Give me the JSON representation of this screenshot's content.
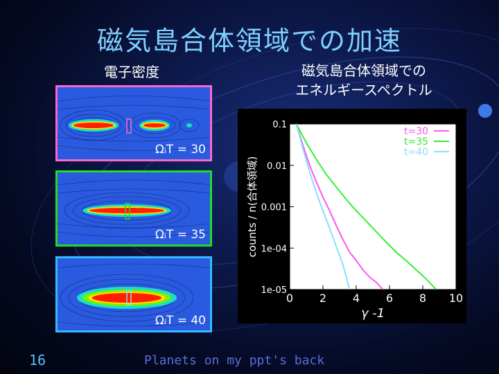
{
  "slide": {
    "title": "磁気島合体領域での加速",
    "number": "16",
    "footer": "Planets on my ppt's back"
  },
  "left_panel": {
    "subtitle": "電子密度",
    "images": [
      {
        "label": "ΩᵢT = 30",
        "border_color": "#ff66cc"
      },
      {
        "label": "ΩᵢT = 35",
        "border_color": "#22dd22"
      },
      {
        "label": "ΩᵢT = 40",
        "border_color": "#33bbff"
      }
    ]
  },
  "right_panel": {
    "subtitle_line1": "磁気島合体領域での",
    "subtitle_line2": "エネルギースペクトル"
  },
  "chart_data": {
    "type": "line",
    "xlabel": "γ -1",
    "ylabel": "counts / n(合体領域)",
    "xlim": [
      0,
      10
    ],
    "ylim": [
      1e-05,
      0.1
    ],
    "y_scale": "log",
    "x_ticks": [
      "0",
      "2",
      "4",
      "6",
      "8",
      "10"
    ],
    "y_ticks": [
      "0.1",
      "0.01",
      "0.001",
      "1e-04",
      "1e-05"
    ],
    "legend_position": "top-right",
    "grid": false,
    "series": [
      {
        "name": "t=30",
        "color": "#ff55ee",
        "x": [
          0.4,
          0.8,
          1.2,
          1.6,
          2.0,
          2.4,
          2.8,
          3.2,
          3.6,
          4.0,
          4.4,
          4.8,
          5.2,
          5.6
        ],
        "y": [
          0.1,
          0.03,
          0.01,
          0.004,
          0.0017,
          0.0008,
          0.00035,
          0.00016,
          8e-05,
          5e-05,
          3e-05,
          2e-05,
          1.5e-05,
          1e-05
        ]
      },
      {
        "name": "t=35",
        "color": "#33ee33",
        "x": [
          0.4,
          1.0,
          1.6,
          2.2,
          2.8,
          3.4,
          4.0,
          4.6,
          5.2,
          5.8,
          6.4,
          7.0,
          7.6,
          8.2,
          8.8
        ],
        "y": [
          0.1,
          0.035,
          0.014,
          0.006,
          0.003,
          0.0015,
          0.0008,
          0.00045,
          0.00025,
          0.00014,
          8e-05,
          5e-05,
          3e-05,
          1.8e-05,
          1e-05
        ]
      },
      {
        "name": "t=40",
        "color": "#88ddff",
        "x": [
          0.4,
          0.8,
          1.2,
          1.6,
          2.0,
          2.4,
          2.8,
          3.2,
          3.6
        ],
        "y": [
          0.1,
          0.025,
          0.007,
          0.0022,
          0.0008,
          0.0003,
          0.00011,
          4e-05,
          1e-05
        ]
      }
    ]
  }
}
